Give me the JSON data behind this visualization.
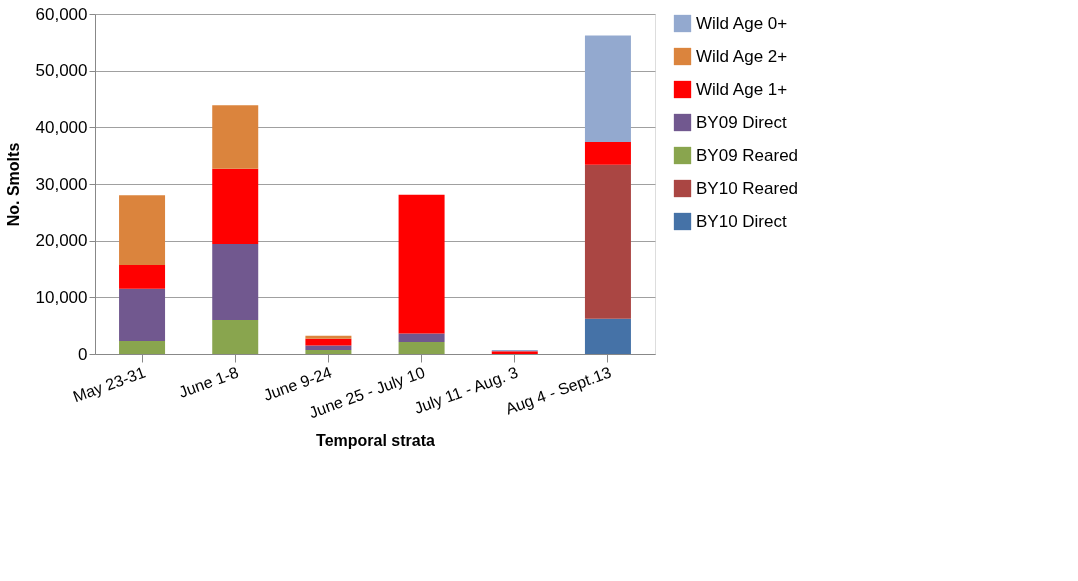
{
  "chart_data": {
    "type": "bar",
    "stacked": true,
    "xlabel": "Temporal strata",
    "ylabel": "No. Smolts",
    "categories": [
      "May 23-31",
      "June 1-8",
      "June 9-24",
      "June 25 - July 10",
      "July 11 - Aug. 3",
      "Aug 4 - Sept.13"
    ],
    "series": [
      {
        "name": "BY10 Direct",
        "color": "#4572a7",
        "values": [
          0,
          0,
          0,
          0,
          0,
          6200
        ]
      },
      {
        "name": "BY10 Reared",
        "color": "#aa4643",
        "values": [
          0,
          0,
          0,
          0,
          0,
          27200
        ]
      },
      {
        "name": "BY09 Reared",
        "color": "#89a54e",
        "values": [
          2300,
          6000,
          700,
          2100,
          0,
          0
        ]
      },
      {
        "name": "BY09 Direct",
        "color": "#71588f",
        "values": [
          9200,
          13400,
          800,
          1500,
          0,
          0
        ]
      },
      {
        "name": "Wild Age 1+",
        "color": "#ff0000",
        "values": [
          4200,
          13300,
          1200,
          24500,
          500,
          4000
        ]
      },
      {
        "name": "Wild Age 2+",
        "color": "#db843d",
        "values": [
          12300,
          11200,
          500,
          0,
          0,
          0
        ]
      },
      {
        "name": "Wild Age 0+",
        "color": "#93a9cf",
        "values": [
          0,
          0,
          0,
          0,
          200,
          18800
        ]
      }
    ],
    "ylim": [
      0,
      60000
    ],
    "yticks": [
      0,
      {
        "value": 10000,
        "label": "10,000"
      },
      {
        "value": 20000,
        "label": "20,000"
      },
      {
        "value": 30000,
        "label": "30,000"
      },
      {
        "value": 40000,
        "label": "40,000"
      },
      {
        "value": 50000,
        "label": "50,000"
      },
      {
        "value": 60000,
        "label": "60,000"
      }
    ],
    "grid": "y",
    "legend": "right"
  }
}
